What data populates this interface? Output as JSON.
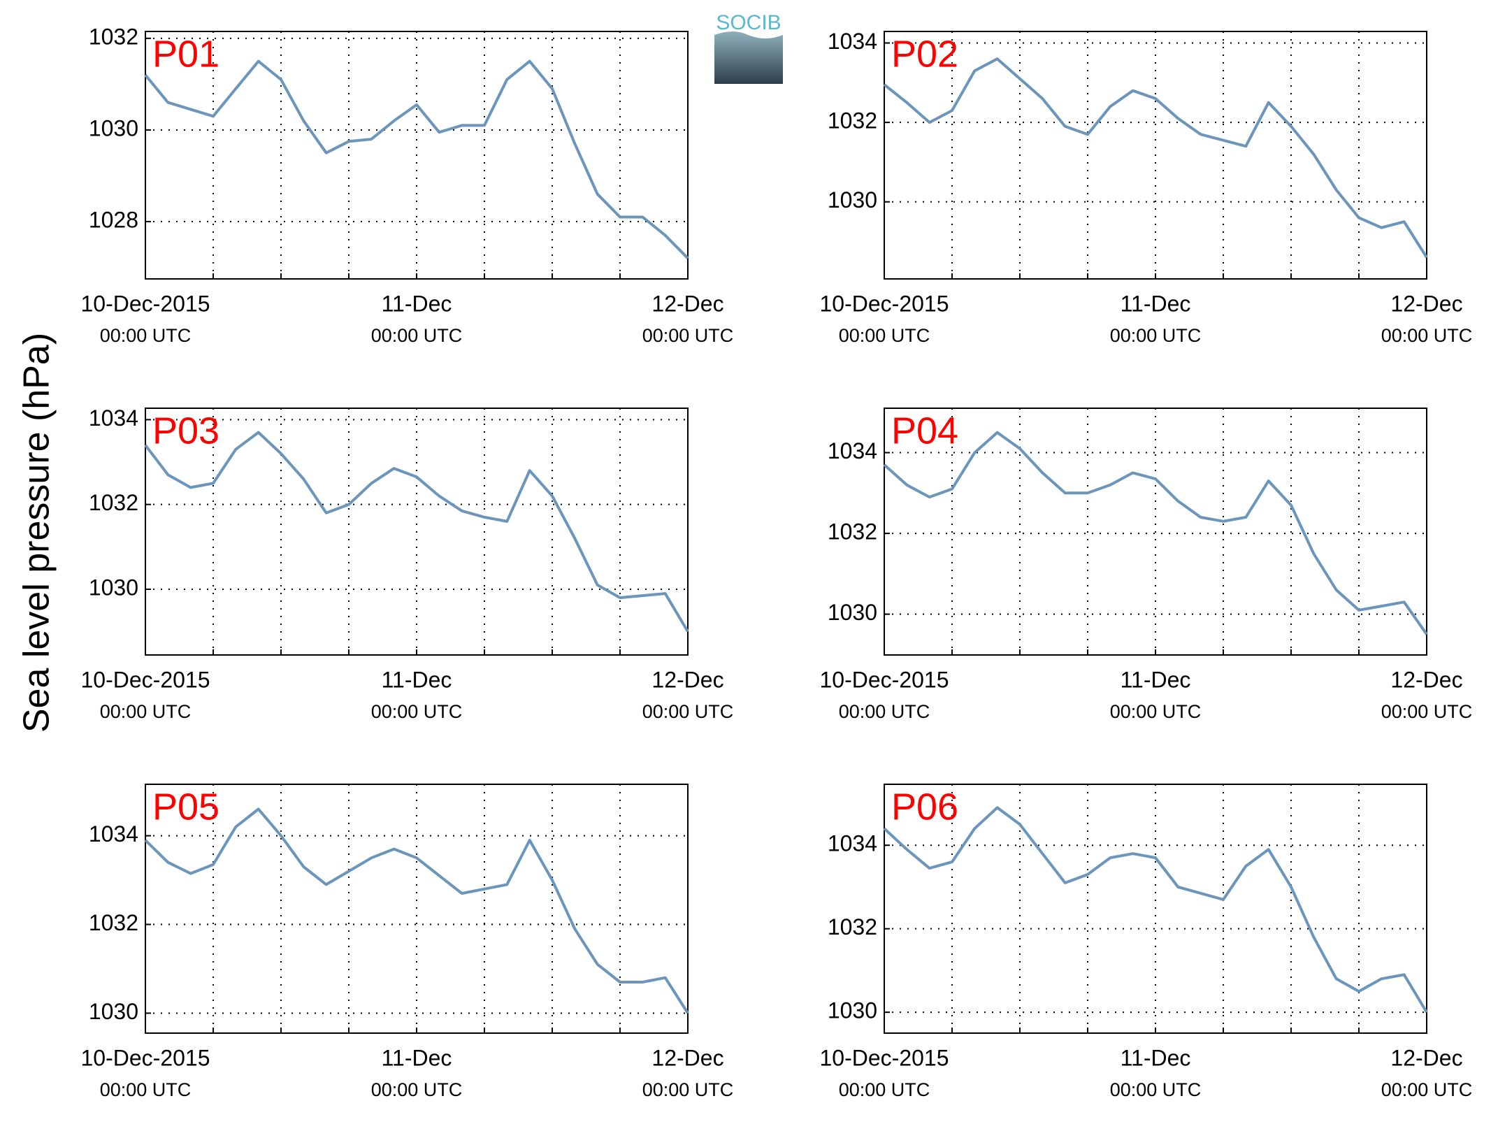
{
  "ylabel": "Sea level pressure (hPa)",
  "logo": "SOCIB",
  "chart_data": [
    {
      "type": "line",
      "title": "P01",
      "color": "#6b95ba",
      "grid": true,
      "x": [
        0,
        2,
        4,
        6,
        8,
        10,
        12,
        14,
        16,
        18,
        20,
        22,
        24,
        26,
        28,
        30,
        32,
        34,
        36,
        38,
        40,
        42,
        44,
        46,
        48
      ],
      "values": [
        1031.2,
        1030.6,
        1030.45,
        1030.3,
        1030.9,
        1031.5,
        1031.1,
        1030.2,
        1029.5,
        1029.75,
        1029.8,
        1030.2,
        1030.55,
        1029.95,
        1030.1,
        1030.1,
        1031.1,
        1031.5,
        1030.9,
        1029.7,
        1028.6,
        1028.1,
        1028.1,
        1027.7,
        1027.2
      ],
      "xlim": [
        0,
        48
      ],
      "xticks": [
        {
          "value": 0,
          "label": [
            "10-Dec-2015",
            "00:00 UTC"
          ]
        },
        {
          "value": 6,
          "label": null
        },
        {
          "value": 12,
          "label": null
        },
        {
          "value": 18,
          "label": null
        },
        {
          "value": 24,
          "label": [
            "11-Dec",
            "00:00 UTC"
          ]
        },
        {
          "value": 30,
          "label": null
        },
        {
          "value": 36,
          "label": null
        },
        {
          "value": 42,
          "label": null
        },
        {
          "value": 48,
          "label": [
            "12-Dec",
            "00:00 UTC"
          ]
        }
      ],
      "ylim": [
        1026.75,
        1032.15
      ],
      "yticks": [
        1028,
        1030,
        1032
      ]
    },
    {
      "type": "line",
      "title": "P02",
      "color": "#6b95ba",
      "grid": true,
      "x": [
        0,
        2,
        4,
        6,
        8,
        10,
        12,
        14,
        16,
        18,
        20,
        22,
        24,
        26,
        28,
        30,
        32,
        34,
        36,
        38,
        40,
        42,
        44,
        46,
        48
      ],
      "values": [
        1032.95,
        1032.5,
        1032.0,
        1032.3,
        1033.3,
        1033.6,
        1033.1,
        1032.6,
        1031.9,
        1031.7,
        1032.4,
        1032.8,
        1032.6,
        1032.1,
        1031.7,
        1031.55,
        1031.4,
        1032.5,
        1031.9,
        1031.2,
        1030.3,
        1029.6,
        1029.35,
        1029.5,
        1028.6
      ],
      "xlim": [
        0,
        48
      ],
      "xticks": [
        {
          "value": 0,
          "label": [
            "10-Dec-2015",
            "00:00 UTC"
          ]
        },
        {
          "value": 6,
          "label": null
        },
        {
          "value": 12,
          "label": null
        },
        {
          "value": 18,
          "label": null
        },
        {
          "value": 24,
          "label": [
            "11-Dec",
            "00:00 UTC"
          ]
        },
        {
          "value": 30,
          "label": null
        },
        {
          "value": 36,
          "label": null
        },
        {
          "value": 42,
          "label": null
        },
        {
          "value": 48,
          "label": [
            "12-Dec",
            "00:00 UTC"
          ]
        }
      ],
      "ylim": [
        1028.06,
        1034.29
      ],
      "yticks": [
        1030,
        1032,
        1034
      ]
    },
    {
      "type": "line",
      "title": "P03",
      "color": "#6b95ba",
      "grid": true,
      "x": [
        0,
        2,
        4,
        6,
        8,
        10,
        12,
        14,
        16,
        18,
        20,
        22,
        24,
        26,
        28,
        30,
        32,
        34,
        36,
        38,
        40,
        42,
        44,
        46,
        48
      ],
      "values": [
        1033.4,
        1032.7,
        1032.4,
        1032.5,
        1033.3,
        1033.7,
        1033.2,
        1032.6,
        1031.8,
        1032.0,
        1032.5,
        1032.85,
        1032.65,
        1032.2,
        1031.85,
        1031.7,
        1031.6,
        1032.8,
        1032.2,
        1031.2,
        1030.1,
        1029.8,
        1029.85,
        1029.9,
        1029.0
      ],
      "xlim": [
        0,
        48
      ],
      "xticks": [
        {
          "value": 0,
          "label": [
            "10-Dec-2015",
            "00:00 UTC"
          ]
        },
        {
          "value": 6,
          "label": null
        },
        {
          "value": 12,
          "label": null
        },
        {
          "value": 18,
          "label": null
        },
        {
          "value": 24,
          "label": [
            "11-Dec",
            "00:00 UTC"
          ]
        },
        {
          "value": 30,
          "label": null
        },
        {
          "value": 36,
          "label": null
        },
        {
          "value": 42,
          "label": null
        },
        {
          "value": 48,
          "label": [
            "12-Dec",
            "00:00 UTC"
          ]
        }
      ],
      "ylim": [
        1028.45,
        1034.27
      ],
      "yticks": [
        1030,
        1032,
        1034
      ]
    },
    {
      "type": "line",
      "title": "P04",
      "color": "#6b95ba",
      "grid": true,
      "x": [
        0,
        2,
        4,
        6,
        8,
        10,
        12,
        14,
        16,
        18,
        20,
        22,
        24,
        26,
        28,
        30,
        32,
        34,
        36,
        38,
        40,
        42,
        44,
        46,
        48
      ],
      "values": [
        1033.7,
        1033.2,
        1032.9,
        1033.1,
        1034.0,
        1034.5,
        1034.1,
        1033.5,
        1033.0,
        1033.0,
        1033.2,
        1033.5,
        1033.35,
        1032.8,
        1032.4,
        1032.3,
        1032.4,
        1033.3,
        1032.7,
        1031.5,
        1030.6,
        1030.1,
        1030.2,
        1030.3,
        1029.5
      ],
      "xlim": [
        0,
        48
      ],
      "xticks": [
        {
          "value": 0,
          "label": [
            "10-Dec-2015",
            "00:00 UTC"
          ]
        },
        {
          "value": 6,
          "label": null
        },
        {
          "value": 12,
          "label": null
        },
        {
          "value": 18,
          "label": null
        },
        {
          "value": 24,
          "label": [
            "11-Dec",
            "00:00 UTC"
          ]
        },
        {
          "value": 30,
          "label": null
        },
        {
          "value": 36,
          "label": null
        },
        {
          "value": 42,
          "label": null
        },
        {
          "value": 48,
          "label": [
            "12-Dec",
            "00:00 UTC"
          ]
        }
      ],
      "ylim": [
        1028.99,
        1035.1
      ],
      "yticks": [
        1030,
        1032,
        1034
      ]
    },
    {
      "type": "line",
      "title": "P05",
      "color": "#6b95ba",
      "grid": true,
      "x": [
        0,
        2,
        4,
        6,
        8,
        10,
        12,
        14,
        16,
        18,
        20,
        22,
        24,
        26,
        28,
        30,
        32,
        34,
        36,
        38,
        40,
        42,
        44,
        46,
        48
      ],
      "values": [
        1033.9,
        1033.4,
        1033.15,
        1033.35,
        1034.2,
        1034.6,
        1034.0,
        1033.3,
        1032.9,
        1033.2,
        1033.5,
        1033.7,
        1033.5,
        1033.1,
        1032.7,
        1032.8,
        1032.9,
        1033.9,
        1033.0,
        1031.9,
        1031.1,
        1030.7,
        1030.7,
        1030.8,
        1030.0
      ],
      "xlim": [
        0,
        48
      ],
      "xticks": [
        {
          "value": 0,
          "label": [
            "10-Dec-2015",
            "00:00 UTC"
          ]
        },
        {
          "value": 6,
          "label": null
        },
        {
          "value": 12,
          "label": null
        },
        {
          "value": 18,
          "label": null
        },
        {
          "value": 24,
          "label": [
            "11-Dec",
            "00:00 UTC"
          ]
        },
        {
          "value": 30,
          "label": null
        },
        {
          "value": 36,
          "label": null
        },
        {
          "value": 42,
          "label": null
        },
        {
          "value": 48,
          "label": [
            "12-Dec",
            "00:00 UTC"
          ]
        }
      ],
      "ylim": [
        1029.55,
        1035.16
      ],
      "yticks": [
        1030,
        1032,
        1034
      ]
    },
    {
      "type": "line",
      "title": "P06",
      "color": "#6b95ba",
      "grid": true,
      "x": [
        0,
        2,
        4,
        6,
        8,
        10,
        12,
        14,
        16,
        18,
        20,
        22,
        24,
        26,
        28,
        30,
        32,
        34,
        36,
        38,
        40,
        42,
        44,
        46,
        48
      ],
      "values": [
        1034.4,
        1033.9,
        1033.45,
        1033.6,
        1034.4,
        1034.9,
        1034.5,
        1033.8,
        1033.1,
        1033.3,
        1033.7,
        1033.8,
        1033.7,
        1033.0,
        1032.85,
        1032.7,
        1033.5,
        1033.9,
        1033.0,
        1031.8,
        1030.8,
        1030.5,
        1030.8,
        1030.9,
        1030.0
      ],
      "xlim": [
        0,
        48
      ],
      "xticks": [
        {
          "value": 0,
          "label": [
            "10-Dec-2015",
            "00:00 UTC"
          ]
        },
        {
          "value": 6,
          "label": null
        },
        {
          "value": 12,
          "label": null
        },
        {
          "value": 18,
          "label": null
        },
        {
          "value": 24,
          "label": [
            "11-Dec",
            "00:00 UTC"
          ]
        },
        {
          "value": 30,
          "label": null
        },
        {
          "value": 36,
          "label": null
        },
        {
          "value": 42,
          "label": null
        },
        {
          "value": 48,
          "label": [
            "12-Dec",
            "00:00 UTC"
          ]
        }
      ],
      "ylim": [
        1029.5,
        1035.46
      ],
      "yticks": [
        1030,
        1032,
        1034
      ]
    }
  ]
}
